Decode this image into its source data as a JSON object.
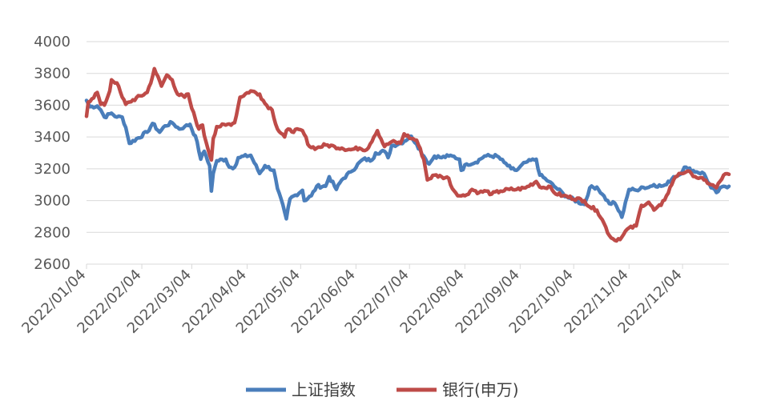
{
  "chart_data": {
    "type": "line",
    "title": "",
    "xlabel": "",
    "ylabel": "",
    "ylim": [
      2600,
      4000
    ],
    "y_ticks": [
      "2600",
      "2800",
      "3000",
      "3200",
      "3400",
      "3600",
      "3800",
      "4000"
    ],
    "x_range": [
      "2022-01-04",
      "2022-12-30"
    ],
    "x_tick_labels": [
      "2022/01/04",
      "2022/02/04",
      "2022/03/04",
      "2022/04/04",
      "2022/05/04",
      "2022/06/04",
      "2022/07/04",
      "2022/08/04",
      "2022/09/04",
      "2022/10/04",
      "2022/11/04",
      "2022/12/04"
    ],
    "grid": "horizontal",
    "legend_position": "bottom",
    "series": [
      {
        "name": "上证指数",
        "color": "#4a7ebb",
        "points": [
          [
            "2022-01-04",
            3630
          ],
          [
            "2022-01-06",
            3590
          ],
          [
            "2022-01-10",
            3595
          ],
          [
            "2022-01-12",
            3570
          ],
          [
            "2022-01-14",
            3525
          ],
          [
            "2022-01-18",
            3550
          ],
          [
            "2022-01-21",
            3525
          ],
          [
            "2022-01-24",
            3525
          ],
          [
            "2022-01-26",
            3460
          ],
          [
            "2022-01-28",
            3360
          ],
          [
            "2022-02-07",
            3430
          ],
          [
            "2022-02-10",
            3485
          ],
          [
            "2022-02-14",
            3430
          ],
          [
            "2022-02-17",
            3470
          ],
          [
            "2022-02-21",
            3490
          ],
          [
            "2022-02-25",
            3450
          ],
          [
            "2022-02-28",
            3465
          ],
          [
            "2022-03-03",
            3480
          ],
          [
            "2022-03-07",
            3370
          ],
          [
            "2022-03-09",
            3260
          ],
          [
            "2022-03-11",
            3310
          ],
          [
            "2022-03-14",
            3220
          ],
          [
            "2022-03-15",
            3060
          ],
          [
            "2022-03-16",
            3170
          ],
          [
            "2022-03-18",
            3250
          ],
          [
            "2022-03-23",
            3260
          ],
          [
            "2022-03-25",
            3210
          ],
          [
            "2022-03-28",
            3210
          ],
          [
            "2022-03-30",
            3270
          ],
          [
            "2022-04-06",
            3285
          ],
          [
            "2022-04-11",
            3170
          ],
          [
            "2022-04-14",
            3220
          ],
          [
            "2022-04-19",
            3190
          ],
          [
            "2022-04-21",
            3075
          ],
          [
            "2022-04-25",
            2928
          ],
          [
            "2022-04-26",
            2885
          ],
          [
            "2022-04-28",
            3010
          ],
          [
            "2022-05-05",
            3065
          ],
          [
            "2022-05-06",
            3000
          ],
          [
            "2022-05-10",
            3030
          ],
          [
            "2022-05-13",
            3090
          ],
          [
            "2022-05-18",
            3090
          ],
          [
            "2022-05-20",
            3150
          ],
          [
            "2022-05-24",
            3070
          ],
          [
            "2022-05-27",
            3130
          ],
          [
            "2022-06-01",
            3180
          ],
          [
            "2022-06-08",
            3260
          ],
          [
            "2022-06-13",
            3255
          ],
          [
            "2022-06-15",
            3300
          ],
          [
            "2022-06-20",
            3310
          ],
          [
            "2022-06-22",
            3270
          ],
          [
            "2022-06-24",
            3345
          ],
          [
            "2022-06-29",
            3360
          ],
          [
            "2022-07-05",
            3405
          ],
          [
            "2022-07-08",
            3355
          ],
          [
            "2022-07-12",
            3280
          ],
          [
            "2022-07-15",
            3230
          ],
          [
            "2022-07-18",
            3280
          ],
          [
            "2022-07-22",
            3270
          ],
          [
            "2022-07-26",
            3280
          ],
          [
            "2022-07-28",
            3280
          ],
          [
            "2022-08-01",
            3260
          ],
          [
            "2022-08-02",
            3190
          ],
          [
            "2022-08-05",
            3230
          ],
          [
            "2022-08-10",
            3240
          ],
          [
            "2022-08-15",
            3280
          ],
          [
            "2022-08-22",
            3280
          ],
          [
            "2022-08-26",
            3240
          ],
          [
            "2022-08-30",
            3200
          ],
          [
            "2022-09-02",
            3190
          ],
          [
            "2022-09-07",
            3240
          ],
          [
            "2022-09-13",
            3260
          ],
          [
            "2022-09-15",
            3160
          ],
          [
            "2022-09-20",
            3120
          ],
          [
            "2022-09-23",
            3090
          ],
          [
            "2022-09-28",
            3045
          ],
          [
            "2022-09-30",
            3025
          ],
          [
            "2022-10-10",
            2975
          ],
          [
            "2022-10-13",
            3080
          ],
          [
            "2022-10-17",
            3085
          ],
          [
            "2022-10-20",
            3040
          ],
          [
            "2022-10-24",
            2980
          ],
          [
            "2022-10-27",
            2985
          ],
          [
            "2022-10-31",
            2895
          ],
          [
            "2022-11-02",
            2990
          ],
          [
            "2022-11-04",
            3070
          ],
          [
            "2022-11-08",
            3065
          ],
          [
            "2022-11-11",
            3085
          ],
          [
            "2022-11-14",
            3080
          ],
          [
            "2022-11-18",
            3100
          ],
          [
            "2022-11-22",
            3090
          ],
          [
            "2022-11-25",
            3100
          ],
          [
            "2022-11-29",
            3150
          ],
          [
            "2022-12-02",
            3160
          ],
          [
            "2022-12-05",
            3210
          ],
          [
            "2022-12-07",
            3200
          ],
          [
            "2022-12-12",
            3180
          ],
          [
            "2022-12-16",
            3170
          ],
          [
            "2022-12-20",
            3080
          ],
          [
            "2022-12-23",
            3050
          ],
          [
            "2022-12-27",
            3090
          ],
          [
            "2022-12-30",
            3090
          ]
        ]
      },
      {
        "name": "银行(申万)",
        "color": "#be4b48",
        "points": [
          [
            "2022-01-04",
            3530
          ],
          [
            "2022-01-05",
            3620
          ],
          [
            "2022-01-07",
            3640
          ],
          [
            "2022-01-10",
            3680
          ],
          [
            "2022-01-12",
            3605
          ],
          [
            "2022-01-14",
            3600
          ],
          [
            "2022-01-17",
            3690
          ],
          [
            "2022-01-18",
            3760
          ],
          [
            "2022-01-21",
            3740
          ],
          [
            "2022-01-24",
            3650
          ],
          [
            "2022-01-26",
            3605
          ],
          [
            "2022-01-28",
            3620
          ],
          [
            "2022-02-07",
            3680
          ],
          [
            "2022-02-10",
            3780
          ],
          [
            "2022-02-11",
            3830
          ],
          [
            "2022-02-15",
            3720
          ],
          [
            "2022-02-18",
            3790
          ],
          [
            "2022-02-21",
            3760
          ],
          [
            "2022-02-24",
            3670
          ],
          [
            "2022-02-28",
            3650
          ],
          [
            "2022-03-02",
            3670
          ],
          [
            "2022-03-04",
            3580
          ],
          [
            "2022-03-08",
            3450
          ],
          [
            "2022-03-10",
            3475
          ],
          [
            "2022-03-11",
            3410
          ],
          [
            "2022-03-15",
            3255
          ],
          [
            "2022-03-16",
            3390
          ],
          [
            "2022-03-18",
            3465
          ],
          [
            "2022-03-23",
            3475
          ],
          [
            "2022-03-28",
            3490
          ],
          [
            "2022-03-31",
            3650
          ],
          [
            "2022-04-06",
            3690
          ],
          [
            "2022-04-11",
            3670
          ],
          [
            "2022-04-14",
            3610
          ],
          [
            "2022-04-18",
            3570
          ],
          [
            "2022-04-21",
            3450
          ],
          [
            "2022-04-25",
            3400
          ],
          [
            "2022-04-26",
            3440
          ],
          [
            "2022-05-05",
            3440
          ],
          [
            "2022-05-09",
            3340
          ],
          [
            "2022-05-13",
            3330
          ],
          [
            "2022-05-18",
            3350
          ],
          [
            "2022-05-23",
            3340
          ],
          [
            "2022-05-27",
            3330
          ],
          [
            "2022-06-01",
            3320
          ],
          [
            "2022-06-06",
            3330
          ],
          [
            "2022-06-10",
            3320
          ],
          [
            "2022-06-14",
            3400
          ],
          [
            "2022-06-16",
            3440
          ],
          [
            "2022-06-20",
            3340
          ],
          [
            "2022-06-24",
            3370
          ],
          [
            "2022-06-29",
            3360
          ],
          [
            "2022-07-01",
            3420
          ],
          [
            "2022-07-05",
            3390
          ],
          [
            "2022-07-08",
            3380
          ],
          [
            "2022-07-12",
            3260
          ],
          [
            "2022-07-14",
            3130
          ],
          [
            "2022-07-18",
            3160
          ],
          [
            "2022-07-22",
            3150
          ],
          [
            "2022-07-26",
            3140
          ],
          [
            "2022-07-28",
            3075
          ],
          [
            "2022-08-01",
            3030
          ],
          [
            "2022-08-04",
            3030
          ],
          [
            "2022-08-08",
            3070
          ],
          [
            "2022-08-12",
            3050
          ],
          [
            "2022-08-16",
            3060
          ],
          [
            "2022-08-19",
            3040
          ],
          [
            "2022-08-24",
            3060
          ],
          [
            "2022-08-29",
            3070
          ],
          [
            "2022-09-02",
            3070
          ],
          [
            "2022-09-07",
            3080
          ],
          [
            "2022-09-13",
            3120
          ],
          [
            "2022-09-16",
            3080
          ],
          [
            "2022-09-20",
            3090
          ],
          [
            "2022-09-23",
            3050
          ],
          [
            "2022-09-28",
            3030
          ],
          [
            "2022-10-10",
            3000
          ],
          [
            "2022-10-13",
            2960
          ],
          [
            "2022-10-17",
            2940
          ],
          [
            "2022-10-20",
            2880
          ],
          [
            "2022-10-24",
            2780
          ],
          [
            "2022-10-27",
            2750
          ],
          [
            "2022-10-31",
            2770
          ],
          [
            "2022-11-03",
            2820
          ],
          [
            "2022-11-08",
            2840
          ],
          [
            "2022-11-11",
            2970
          ],
          [
            "2022-11-15",
            2990
          ],
          [
            "2022-11-18",
            2940
          ],
          [
            "2022-11-22",
            2970
          ],
          [
            "2022-11-25",
            3030
          ],
          [
            "2022-11-29",
            3130
          ],
          [
            "2022-12-02",
            3170
          ],
          [
            "2022-12-06",
            3180
          ],
          [
            "2022-12-09",
            3170
          ],
          [
            "2022-12-13",
            3140
          ],
          [
            "2022-12-16",
            3130
          ],
          [
            "2022-12-20",
            3100
          ],
          [
            "2022-12-23",
            3080
          ],
          [
            "2022-12-27",
            3160
          ],
          [
            "2022-12-30",
            3165
          ]
        ]
      }
    ]
  }
}
